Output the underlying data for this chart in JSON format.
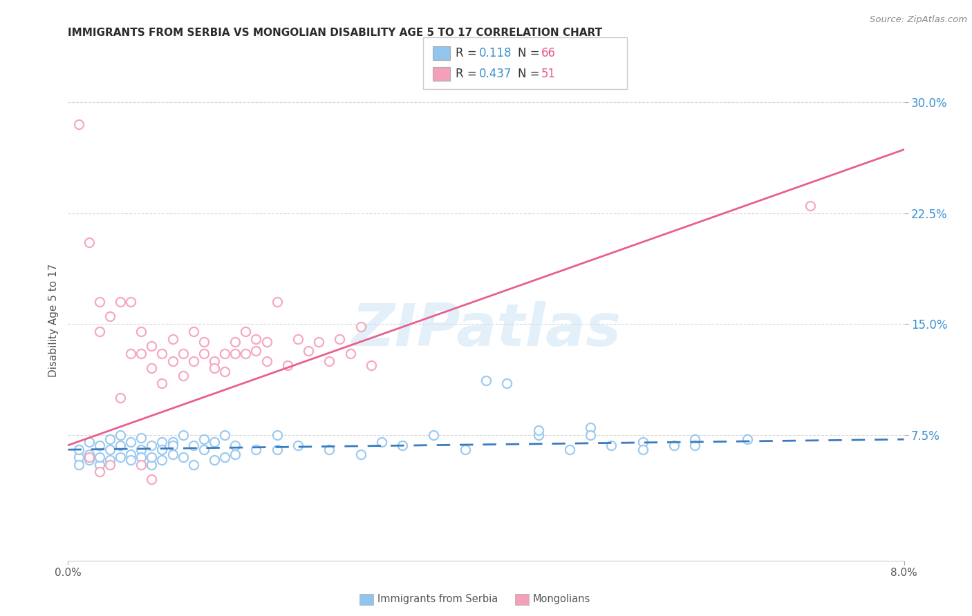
{
  "title": "IMMIGRANTS FROM SERBIA VS MONGOLIAN DISABILITY AGE 5 TO 17 CORRELATION CHART",
  "source": "Source: ZipAtlas.com",
  "ylabel": "Disability Age 5 to 17",
  "xlabel_serbia": "Immigrants from Serbia",
  "xlabel_mongolian": "Mongolians",
  "x_min": 0.0,
  "x_max": 0.08,
  "y_min": -0.01,
  "y_max": 0.315,
  "y_ticks": [
    0.075,
    0.15,
    0.225,
    0.3
  ],
  "y_tick_labels": [
    "7.5%",
    "15.0%",
    "22.5%",
    "30.0%"
  ],
  "color_serbia": "#92c5ee",
  "color_mongolian": "#f4a0b8",
  "trendline_serbia_color": "#3a7abf",
  "trendline_mongolia_color": "#e8608a",
  "legend_r_color": "#3a90d0",
  "legend_n_color": "#e05090",
  "serbia_scatter": [
    [
      0.001,
      0.06
    ],
    [
      0.001,
      0.055
    ],
    [
      0.001,
      0.065
    ],
    [
      0.002,
      0.07
    ],
    [
      0.002,
      0.058
    ],
    [
      0.002,
      0.062
    ],
    [
      0.003,
      0.068
    ],
    [
      0.003,
      0.055
    ],
    [
      0.003,
      0.06
    ],
    [
      0.004,
      0.065
    ],
    [
      0.004,
      0.058
    ],
    [
      0.004,
      0.072
    ],
    [
      0.005,
      0.068
    ],
    [
      0.005,
      0.06
    ],
    [
      0.005,
      0.075
    ],
    [
      0.006,
      0.062
    ],
    [
      0.006,
      0.058
    ],
    [
      0.006,
      0.07
    ],
    [
      0.007,
      0.065
    ],
    [
      0.007,
      0.06
    ],
    [
      0.007,
      0.073
    ],
    [
      0.008,
      0.055
    ],
    [
      0.008,
      0.068
    ],
    [
      0.008,
      0.06
    ],
    [
      0.009,
      0.07
    ],
    [
      0.009,
      0.058
    ],
    [
      0.009,
      0.065
    ],
    [
      0.01,
      0.062
    ],
    [
      0.01,
      0.07
    ],
    [
      0.01,
      0.068
    ],
    [
      0.011,
      0.075
    ],
    [
      0.011,
      0.06
    ],
    [
      0.012,
      0.068
    ],
    [
      0.012,
      0.055
    ],
    [
      0.013,
      0.065
    ],
    [
      0.013,
      0.072
    ],
    [
      0.014,
      0.058
    ],
    [
      0.014,
      0.07
    ],
    [
      0.015,
      0.075
    ],
    [
      0.015,
      0.06
    ],
    [
      0.016,
      0.068
    ],
    [
      0.016,
      0.062
    ],
    [
      0.018,
      0.065
    ],
    [
      0.02,
      0.075
    ],
    [
      0.02,
      0.065
    ],
    [
      0.022,
      0.068
    ],
    [
      0.025,
      0.065
    ],
    [
      0.028,
      0.062
    ],
    [
      0.03,
      0.07
    ],
    [
      0.032,
      0.068
    ],
    [
      0.035,
      0.075
    ],
    [
      0.038,
      0.065
    ],
    [
      0.04,
      0.112
    ],
    [
      0.042,
      0.11
    ],
    [
      0.045,
      0.075
    ],
    [
      0.048,
      0.065
    ],
    [
      0.05,
      0.08
    ],
    [
      0.052,
      0.068
    ],
    [
      0.055,
      0.07
    ],
    [
      0.058,
      0.068
    ],
    [
      0.06,
      0.072
    ],
    [
      0.045,
      0.078
    ],
    [
      0.05,
      0.075
    ],
    [
      0.055,
      0.065
    ],
    [
      0.06,
      0.068
    ],
    [
      0.065,
      0.072
    ]
  ],
  "mongolia_scatter": [
    [
      0.001,
      0.285
    ],
    [
      0.002,
      0.205
    ],
    [
      0.003,
      0.165
    ],
    [
      0.003,
      0.145
    ],
    [
      0.004,
      0.155
    ],
    [
      0.005,
      0.165
    ],
    [
      0.005,
      0.1
    ],
    [
      0.006,
      0.13
    ],
    [
      0.006,
      0.165
    ],
    [
      0.007,
      0.145
    ],
    [
      0.007,
      0.13
    ],
    [
      0.008,
      0.135
    ],
    [
      0.008,
      0.12
    ],
    [
      0.009,
      0.11
    ],
    [
      0.009,
      0.13
    ],
    [
      0.01,
      0.125
    ],
    [
      0.01,
      0.14
    ],
    [
      0.011,
      0.115
    ],
    [
      0.011,
      0.13
    ],
    [
      0.012,
      0.125
    ],
    [
      0.012,
      0.145
    ],
    [
      0.013,
      0.13
    ],
    [
      0.013,
      0.138
    ],
    [
      0.014,
      0.125
    ],
    [
      0.014,
      0.12
    ],
    [
      0.015,
      0.118
    ],
    [
      0.015,
      0.13
    ],
    [
      0.016,
      0.13
    ],
    [
      0.016,
      0.138
    ],
    [
      0.017,
      0.145
    ],
    [
      0.017,
      0.13
    ],
    [
      0.018,
      0.132
    ],
    [
      0.018,
      0.14
    ],
    [
      0.019,
      0.138
    ],
    [
      0.019,
      0.125
    ],
    [
      0.02,
      0.165
    ],
    [
      0.021,
      0.122
    ],
    [
      0.022,
      0.14
    ],
    [
      0.023,
      0.132
    ],
    [
      0.024,
      0.138
    ],
    [
      0.025,
      0.125
    ],
    [
      0.026,
      0.14
    ],
    [
      0.027,
      0.13
    ],
    [
      0.028,
      0.148
    ],
    [
      0.029,
      0.122
    ],
    [
      0.002,
      0.06
    ],
    [
      0.003,
      0.05
    ],
    [
      0.004,
      0.055
    ],
    [
      0.007,
      0.055
    ],
    [
      0.071,
      0.23
    ],
    [
      0.008,
      0.045
    ]
  ],
  "serbia_trend_x0": 0.0,
  "serbia_trend_y0": 0.065,
  "serbia_trend_x1": 0.08,
  "serbia_trend_y1": 0.072,
  "mongolia_trend_x0": 0.0,
  "mongolia_trend_y0": 0.068,
  "mongolia_trend_x1": 0.08,
  "mongolia_trend_y1": 0.268
}
